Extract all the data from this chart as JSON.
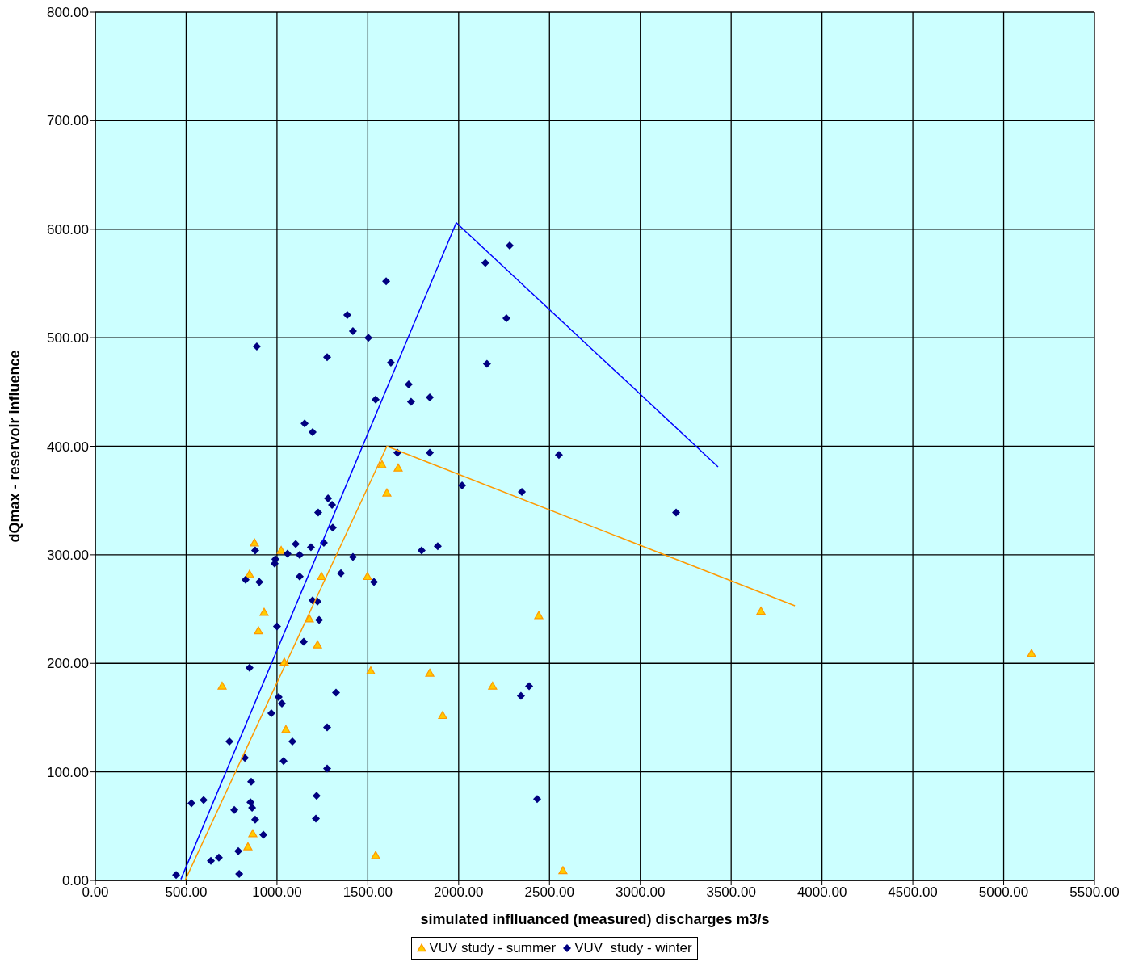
{
  "chart_data": {
    "type": "scatter",
    "xlabel": "simulated inflluanced (measured) discharges m3/s",
    "ylabel": "dQmax - reservoir influence",
    "xlim": [
      0,
      5500
    ],
    "ylim": [
      0,
      800
    ],
    "xticks": [
      {
        "value": 0,
        "label": "0.00"
      },
      {
        "value": 500,
        "label": "500.00"
      },
      {
        "value": 1000,
        "label": "1000.00"
      },
      {
        "value": 1500,
        "label": "1500.00"
      },
      {
        "value": 2000,
        "label": "2000.00"
      },
      {
        "value": 2500,
        "label": "2500.00"
      },
      {
        "value": 3000,
        "label": "3000.00"
      },
      {
        "value": 3500,
        "label": "3500.00"
      },
      {
        "value": 4000,
        "label": "4000.00"
      },
      {
        "value": 4500,
        "label": "4500.00"
      },
      {
        "value": 5000,
        "label": "5000.00"
      },
      {
        "value": 5500,
        "label": "5500.00"
      }
    ],
    "yticks": [
      {
        "value": 0,
        "label": "0.00"
      },
      {
        "value": 100,
        "label": "100.00"
      },
      {
        "value": 200,
        "label": "200.00"
      },
      {
        "value": 300,
        "label": "300.00"
      },
      {
        "value": 400,
        "label": "400.00"
      },
      {
        "value": 500,
        "label": "500.00"
      },
      {
        "value": 600,
        "label": "600.00"
      },
      {
        "value": 700,
        "label": "700.00"
      },
      {
        "value": 800,
        "label": "800.00"
      }
    ],
    "grid": true,
    "legend": "bottom",
    "series": [
      {
        "name": "VUV study - summer",
        "marker": "triangle",
        "color": "#ffcc00",
        "x": [
          698,
          867,
          840,
          849,
          876,
          898,
          929,
          1023,
          1040,
          1049,
          1178,
          1223,
          1245,
          1498,
          1516,
          1543,
          1578,
          1605,
          1667,
          1841,
          1912,
          2187,
          2441,
          2574,
          3664,
          5153
        ],
        "values": [
          179,
          43,
          31,
          282,
          311,
          230,
          247,
          304,
          201,
          139,
          241,
          217,
          280,
          280,
          193,
          23,
          383,
          357,
          380,
          191,
          152,
          179,
          244,
          9,
          248,
          209
        ]
      },
      {
        "name": "VUV  study - winter",
        "marker": "diamond",
        "color": "#000080",
        "x": [
          445,
          529,
          596,
          636,
          680,
          765,
          738,
          787,
          792,
          823,
          827,
          849,
          858,
          854,
          863,
          880,
          889,
          880,
          903,
          925,
          987,
          991,
          1000,
          1009,
          969,
          1027,
          1036,
          1085,
          1058,
          1103,
          1125,
          1125,
          1147,
          1152,
          1187,
          1196,
          1196,
          1218,
          1214,
          1223,
          1227,
          1232,
          1258,
          1276,
          1281,
          1276,
          1276,
          1303,
          1307,
          1325,
          1352,
          1387,
          1418,
          1418,
          1503,
          1534,
          1543,
          1601,
          1627,
          1663,
          1725,
          1738,
          1796,
          1841,
          1841,
          1885,
          2019,
          2147,
          2156,
          2263,
          2281,
          2348,
          2388,
          2343,
          2432,
          2552,
          3197
        ],
        "values": [
          5,
          71,
          74,
          18,
          21,
          65,
          128,
          27,
          6,
          113,
          277,
          196,
          91,
          72,
          67,
          56,
          492,
          304,
          275,
          42,
          292,
          296,
          234,
          169,
          154,
          163,
          110,
          128,
          301,
          310,
          300,
          280,
          220,
          421,
          307,
          413,
          258,
          78,
          57,
          257,
          339,
          240,
          311,
          482,
          352,
          141,
          103,
          346,
          325,
          173,
          283,
          521,
          506,
          298,
          500,
          275,
          443,
          552,
          477,
          394,
          457,
          441,
          304,
          445,
          394,
          308,
          364,
          569,
          476,
          518,
          585,
          358,
          179,
          170,
          75,
          392,
          339
        ]
      },
      {
        "type": "line",
        "marker": "none",
        "color": "#0000ff",
        "x": [
          471,
          1987,
          3428
        ],
        "values": [
          1,
          606,
          381
        ]
      },
      {
        "type": "line",
        "marker": "none",
        "color": "#ff9900",
        "x": [
          494,
          1605,
          3851
        ],
        "values": [
          0,
          400,
          253
        ]
      }
    ]
  }
}
